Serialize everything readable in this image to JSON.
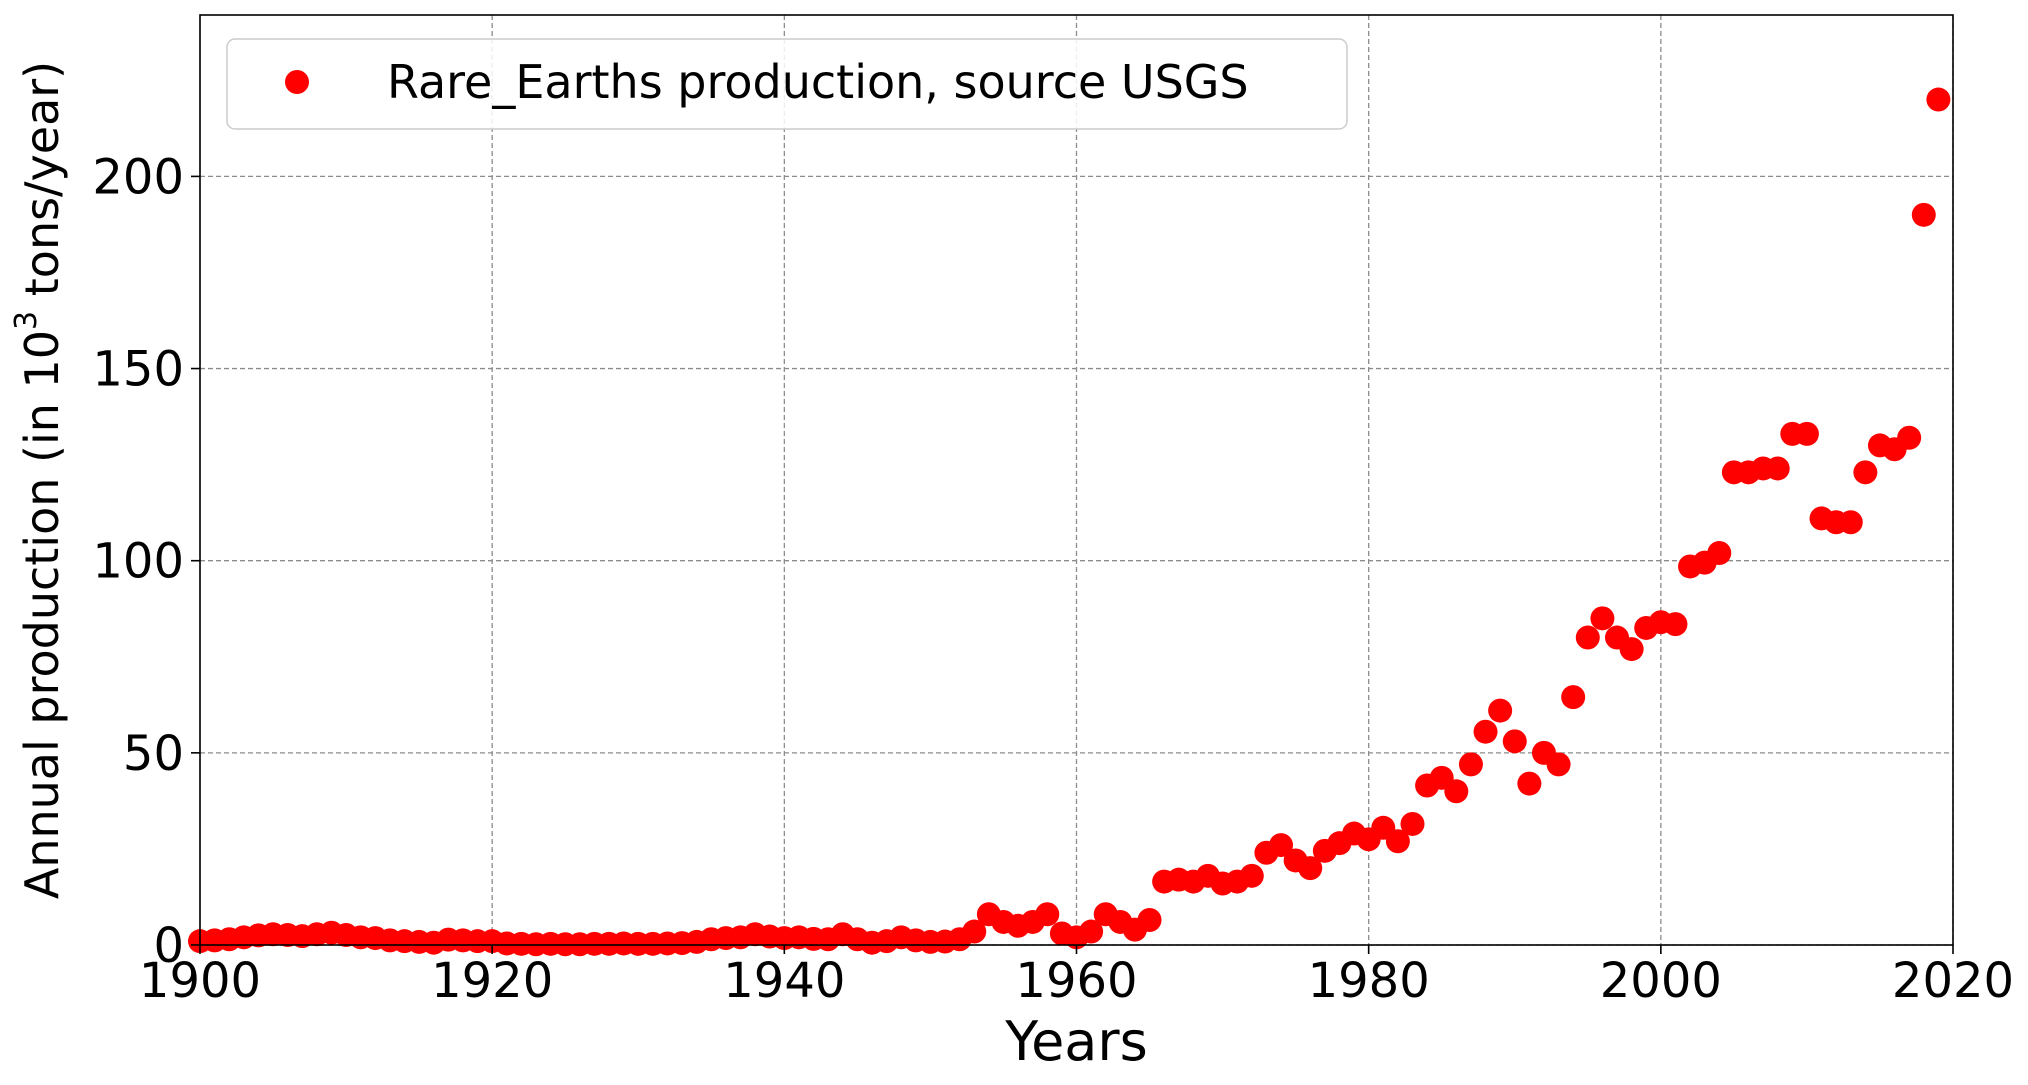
{
  "chart_data": {
    "type": "scatter",
    "xlabel": "Years",
    "ylabel": {
      "prefix": "Annual production (in 10",
      "superscript": "3",
      "suffix": " tons/year)"
    },
    "xlim": [
      1900,
      2020
    ],
    "ylim": [
      0,
      242
    ],
    "xticks": [
      1900,
      1920,
      1940,
      1960,
      1980,
      2000,
      2020
    ],
    "yticks": [
      0,
      50,
      100,
      150,
      200
    ],
    "grid": true,
    "legend_position": "upper-left",
    "series": [
      {
        "name": "Rare_Earths production, source USGS",
        "color": "#ff0000",
        "marker": "circle",
        "points": [
          [
            1900,
            1.0
          ],
          [
            1901,
            1.2
          ],
          [
            1902,
            1.5
          ],
          [
            1903,
            2.0
          ],
          [
            1904,
            2.5
          ],
          [
            1905,
            2.8
          ],
          [
            1906,
            2.6
          ],
          [
            1907,
            2.3
          ],
          [
            1908,
            2.8
          ],
          [
            1909,
            3.2
          ],
          [
            1910,
            2.6
          ],
          [
            1911,
            2.0
          ],
          [
            1912,
            1.8
          ],
          [
            1913,
            1.2
          ],
          [
            1914,
            1.0
          ],
          [
            1915,
            0.8
          ],
          [
            1916,
            0.6
          ],
          [
            1917,
            1.4
          ],
          [
            1918,
            1.2
          ],
          [
            1919,
            1.0
          ],
          [
            1920,
            1.0
          ],
          [
            1921,
            0.4
          ],
          [
            1922,
            0.3
          ],
          [
            1923,
            0.2
          ],
          [
            1924,
            0.3
          ],
          [
            1925,
            0.2
          ],
          [
            1926,
            0.2
          ],
          [
            1927,
            0.3
          ],
          [
            1928,
            0.3
          ],
          [
            1929,
            0.4
          ],
          [
            1930,
            0.3
          ],
          [
            1931,
            0.3
          ],
          [
            1932,
            0.4
          ],
          [
            1933,
            0.5
          ],
          [
            1934,
            0.8
          ],
          [
            1935,
            1.5
          ],
          [
            1936,
            1.8
          ],
          [
            1937,
            2.0
          ],
          [
            1938,
            2.8
          ],
          [
            1939,
            2.2
          ],
          [
            1940,
            1.8
          ],
          [
            1941,
            2.0
          ],
          [
            1942,
            1.6
          ],
          [
            1943,
            1.5
          ],
          [
            1944,
            2.8
          ],
          [
            1945,
            1.5
          ],
          [
            1946,
            0.6
          ],
          [
            1947,
            1.0
          ],
          [
            1948,
            2.0
          ],
          [
            1949,
            1.2
          ],
          [
            1950,
            0.8
          ],
          [
            1951,
            0.9
          ],
          [
            1952,
            1.5
          ],
          [
            1953,
            3.5
          ],
          [
            1954,
            8.0
          ],
          [
            1955,
            6.0
          ],
          [
            1956,
            5.0
          ],
          [
            1957,
            6.0
          ],
          [
            1958,
            8.0
          ],
          [
            1959,
            3.0
          ],
          [
            1960,
            2.0
          ],
          [
            1961,
            3.5
          ],
          [
            1962,
            8.0
          ],
          [
            1963,
            6.0
          ],
          [
            1964,
            4.0
          ],
          [
            1965,
            6.5
          ],
          [
            1966,
            16.5
          ],
          [
            1967,
            17.0
          ],
          [
            1968,
            16.5
          ],
          [
            1969,
            18.0
          ],
          [
            1970,
            16.0
          ],
          [
            1971,
            16.5
          ],
          [
            1972,
            18.0
          ],
          [
            1973,
            24.0
          ],
          [
            1974,
            26.0
          ],
          [
            1975,
            22.0
          ],
          [
            1976,
            20.0
          ],
          [
            1977,
            24.5
          ],
          [
            1978,
            26.5
          ],
          [
            1979,
            29.0
          ],
          [
            1980,
            27.5
          ],
          [
            1981,
            30.5
          ],
          [
            1982,
            27.0
          ],
          [
            1983,
            31.5
          ],
          [
            1984,
            41.5
          ],
          [
            1985,
            43.5
          ],
          [
            1986,
            40.0
          ],
          [
            1987,
            47.0
          ],
          [
            1988,
            55.5
          ],
          [
            1989,
            61.0
          ],
          [
            1990,
            53.0
          ],
          [
            1991,
            42.0
          ],
          [
            1992,
            50.0
          ],
          [
            1993,
            47.0
          ],
          [
            1994,
            64.5
          ],
          [
            1995,
            80.0
          ],
          [
            1996,
            85.0
          ],
          [
            1997,
            80.0
          ],
          [
            1998,
            77.0
          ],
          [
            1999,
            82.5
          ],
          [
            2000,
            84.0
          ],
          [
            2001,
            83.5
          ],
          [
            2002,
            98.5
          ],
          [
            2003,
            99.5
          ],
          [
            2004,
            102.0
          ],
          [
            2005,
            123.0
          ],
          [
            2006,
            123.0
          ],
          [
            2007,
            124.0
          ],
          [
            2008,
            124.0
          ],
          [
            2009,
            133.0
          ],
          [
            2010,
            133.0
          ],
          [
            2011,
            111.0
          ],
          [
            2012,
            110.0
          ],
          [
            2013,
            110.0
          ],
          [
            2014,
            123.0
          ],
          [
            2015,
            130.0
          ],
          [
            2016,
            129.0
          ],
          [
            2017,
            132.0
          ],
          [
            2018,
            190.0
          ],
          [
            2019,
            220.0
          ]
        ]
      }
    ]
  }
}
